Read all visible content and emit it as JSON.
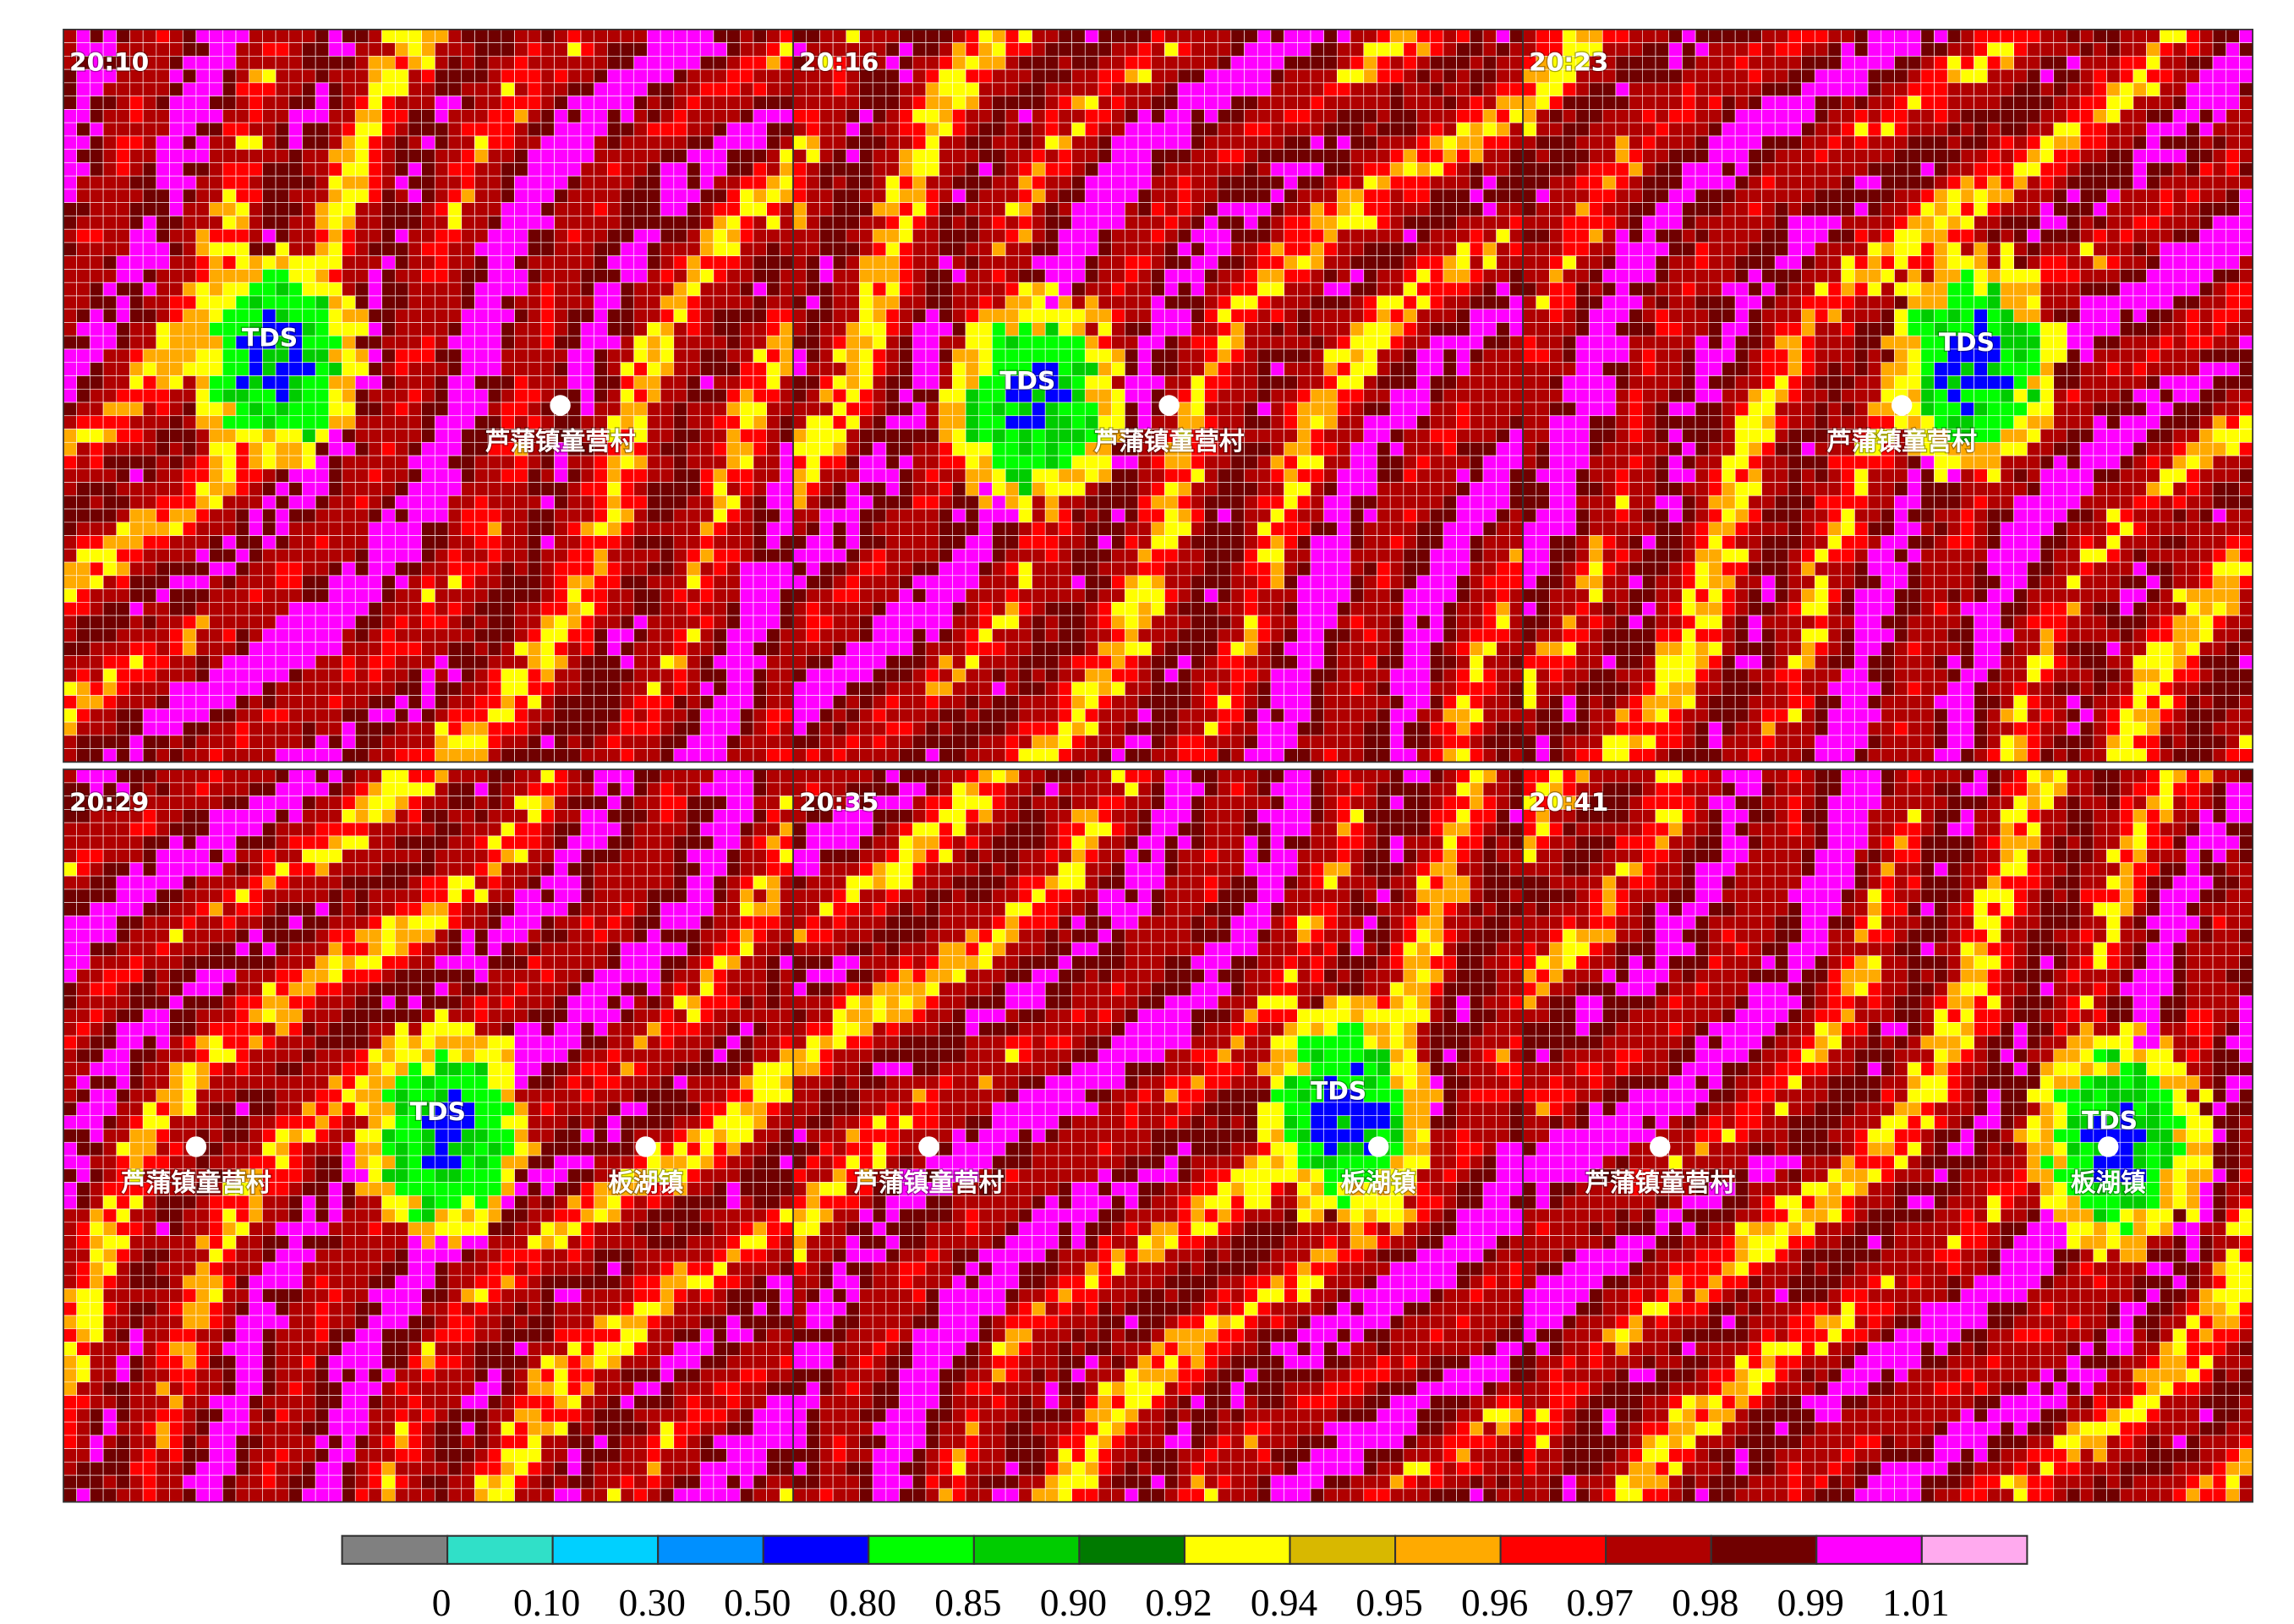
{
  "panels": [
    {
      "time": "20:10",
      "labels": [
        "TDS",
        "芦蒲镇童营村"
      ]
    },
    {
      "time": "20:16",
      "labels": [
        "TDS",
        "芦蒲镇童营村"
      ]
    },
    {
      "time": "20:23",
      "labels": [
        "TDS",
        "芦蒲镇童营村"
      ]
    },
    {
      "time": "20:29",
      "labels": [
        "TDS",
        "芦蒲镇童营村",
        "板湖镇"
      ]
    },
    {
      "time": "20:35",
      "labels": [
        "TDS",
        "芦蒲镇童营村",
        "板湖镇"
      ]
    },
    {
      "time": "20:41",
      "labels": [
        "TDS",
        "芦蒲镇童营村",
        "板湖镇"
      ]
    }
  ],
  "colorbar": {
    "colors": [
      "#808080",
      "#30e0c8",
      "#00d0ff",
      "#0090ff",
      "#0000ff",
      "#00ff00",
      "#00cc00",
      "#007a00",
      "#ffff00",
      "#d8b800",
      "#ffaa00",
      "#ff0000",
      "#b00000",
      "#700000",
      "#ff00ff",
      "#ffaaee"
    ],
    "labels": [
      "0",
      "0.10",
      "0.30",
      "0.50",
      "0.80",
      "0.85",
      "0.90",
      "0.92",
      "0.94",
      "0.95",
      "0.96",
      "0.97",
      "0.98",
      "0.99",
      "1.01"
    ]
  }
}
